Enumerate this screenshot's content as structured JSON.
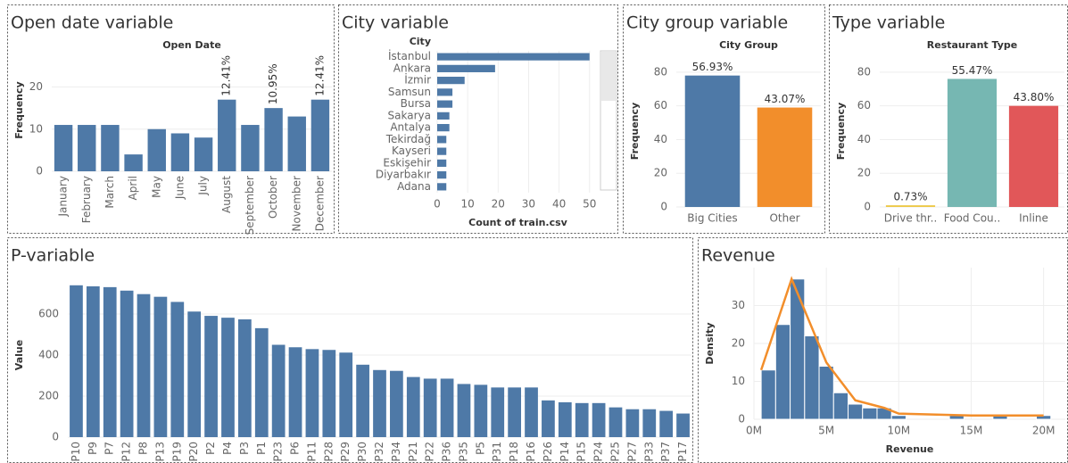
{
  "chart_data": [
    {
      "type": "bar",
      "title": "Open date variable",
      "subtitle": "Open Date",
      "y_label": "Frequency",
      "categories": [
        "January",
        "February",
        "March",
        "April",
        "May",
        "June",
        "July",
        "August",
        "September",
        "October",
        "November",
        "December"
      ],
      "values": [
        11,
        11,
        11,
        4,
        10,
        9,
        8,
        17,
        11,
        15,
        13,
        17
      ],
      "value_labels": [
        null,
        null,
        null,
        null,
        null,
        null,
        null,
        "12.41%",
        null,
        "10.95%",
        null,
        "12.41%"
      ],
      "color": "#4e79a7",
      "ylim": [
        0,
        29
      ],
      "yticks": [
        0,
        10,
        20
      ],
      "grid": true
    },
    {
      "type": "barh",
      "title": "City variable",
      "y_label": "City",
      "x_label": "Count of train.csv",
      "categories": [
        "İstanbul",
        "Ankara",
        "İzmir",
        "Samsun",
        "Bursa",
        "Sakarya",
        "Antalya",
        "Tekirdağ",
        "Kayseri",
        "Eskişehir",
        "Diyarbakır",
        "Adana"
      ],
      "values": [
        50,
        19,
        9,
        5,
        5,
        4,
        4,
        3,
        3,
        3,
        3,
        3
      ],
      "color": "#4e79a7",
      "xlim": [
        0,
        53
      ],
      "xticks": [
        0,
        10,
        20,
        30,
        40,
        50
      ],
      "grid": true
    },
    {
      "type": "bar",
      "title": "City group variable",
      "subtitle": "City Group",
      "y_label": "Frequency",
      "categories": [
        "Big Cities",
        "Other"
      ],
      "values": [
        78,
        59
      ],
      "value_labels": [
        "56.93%",
        "43.07%"
      ],
      "colors": [
        "#4e79a7",
        "#f28e2b"
      ],
      "ylim": [
        0,
        90
      ],
      "yticks": [
        0,
        20,
        40,
        60,
        80
      ],
      "grid": true
    },
    {
      "type": "bar",
      "title": "Type variable",
      "subtitle": "Restaurant Type",
      "y_label": "Frequency",
      "categories": [
        "Drive thr..",
        "Food Cou..",
        "Inline"
      ],
      "values": [
        1,
        76,
        60
      ],
      "value_labels": [
        "0.73%",
        "55.47%",
        "43.80%"
      ],
      "colors": [
        "#edc948",
        "#76b7b2",
        "#e15759"
      ],
      "ylim": [
        0,
        90
      ],
      "yticks": [
        0,
        20,
        40,
        60,
        80
      ],
      "grid": true
    },
    {
      "type": "bar",
      "title": "P-variable",
      "y_label": "Value",
      "categories": [
        "P10",
        "P9",
        "P7",
        "P12",
        "P8",
        "P13",
        "P19",
        "P20",
        "P2",
        "P4",
        "P3",
        "P1",
        "P23",
        "P6",
        "P11",
        "P28",
        "P29",
        "P30",
        "P32",
        "P34",
        "P21",
        "P22",
        "P36",
        "P35",
        "P5",
        "P31",
        "P18",
        "P16",
        "P26",
        "P14",
        "P15",
        "P24",
        "P25",
        "P27",
        "P33",
        "P37",
        "P17"
      ],
      "values": [
        740,
        735,
        731,
        714,
        697,
        684,
        659,
        612,
        591,
        582,
        574,
        531,
        450,
        438,
        429,
        425,
        412,
        353,
        327,
        323,
        293,
        285,
        285,
        259,
        255,
        242,
        242,
        242,
        179,
        170,
        166,
        166,
        145,
        136,
        136,
        128,
        115
      ],
      "color": "#4e79a7",
      "ylim": [
        0,
        800
      ],
      "yticks": [
        0,
        200,
        400,
        600
      ],
      "grid": true
    },
    {
      "type": "histogram",
      "title": "Revenue",
      "x_label": "Revenue",
      "y_label": "Density",
      "bins": [
        500000,
        1500000,
        2500000,
        3500000,
        4500000,
        5500000,
        6500000,
        7500000,
        8500000,
        9500000,
        10500000,
        11500000,
        12500000,
        13500000,
        14500000,
        15500000,
        16500000,
        17500000,
        18500000,
        19500000,
        20500000
      ],
      "values": [
        13,
        25,
        37,
        22,
        14,
        7,
        4,
        3,
        3,
        1,
        0,
        0,
        0,
        1,
        0,
        0,
        1,
        0,
        0,
        1
      ],
      "color": "#4e79a7",
      "density_line": {
        "x": [
          500000,
          2600000,
          5000000,
          7000000,
          9000000,
          10000000,
          15000000,
          20000000
        ],
        "values": [
          13,
          37,
          15,
          5,
          3,
          1.5,
          1,
          1
        ],
        "color": "#f28e2b"
      },
      "xlim": [
        0,
        21500000
      ],
      "xticks": [
        {
          "value": 0,
          "label": "0M"
        },
        {
          "value": 5000000,
          "label": "5M"
        },
        {
          "value": 10000000,
          "label": "10M"
        },
        {
          "value": 15000000,
          "label": "15M"
        },
        {
          "value": 20000000,
          "label": "20M"
        }
      ],
      "ylim": [
        0,
        40
      ],
      "yticks": [
        0,
        10,
        20,
        30
      ],
      "grid": true
    }
  ]
}
